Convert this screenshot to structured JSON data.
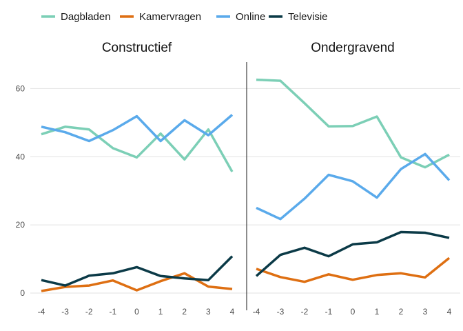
{
  "chart_data": {
    "type": "line",
    "x": [
      -4,
      -3,
      -2,
      -1,
      0,
      1,
      2,
      3,
      4
    ],
    "y_ticks": [
      0,
      20,
      40,
      60
    ],
    "ylim": [
      0,
      70
    ],
    "legend_position": "top",
    "grid": "horizontal",
    "series_colors": {
      "Dagbladen": "#7ccfb6",
      "Kamervragen": "#de6f12",
      "Online": "#5aaaeb",
      "Televisie": "#0b3a47"
    },
    "legend": [
      "Dagbladen",
      "Kamervragen",
      "Online",
      "Televisie"
    ],
    "panels": [
      {
        "title": "Constructief",
        "series": [
          {
            "name": "Dagbladen",
            "values": [
              46.6,
              48.8,
              48.0,
              42.5,
              39.8,
              46.8,
              39.2,
              48.0,
              35.6
            ]
          },
          {
            "name": "Kamervragen",
            "values": [
              0.6,
              1.8,
              2.2,
              3.7,
              0.8,
              3.5,
              5.8,
              1.9,
              1.2
            ]
          },
          {
            "name": "Online",
            "values": [
              48.8,
              47.2,
              44.6,
              47.8,
              51.9,
              44.6,
              50.7,
              46.3,
              52.3
            ]
          },
          {
            "name": "Televisie",
            "values": [
              3.8,
              2.2,
              5.1,
              5.8,
              7.6,
              5.0,
              4.3,
              3.8,
              10.8
            ]
          }
        ]
      },
      {
        "title": "Ondergravend",
        "series": [
          {
            "name": "Dagbladen",
            "values": [
              62.6,
              62.3,
              55.7,
              48.9,
              49.0,
              51.8,
              39.8,
              36.9,
              40.6
            ]
          },
          {
            "name": "Kamervragen",
            "values": [
              7.1,
              4.7,
              3.3,
              5.5,
              3.9,
              5.3,
              5.8,
              4.6,
              10.3
            ]
          },
          {
            "name": "Online",
            "values": [
              25.0,
              21.7,
              27.7,
              34.7,
              32.8,
              28.0,
              36.4,
              40.8,
              33.1
            ]
          },
          {
            "name": "Televisie",
            "values": [
              5.0,
              11.2,
              13.3,
              10.8,
              14.3,
              14.9,
              17.9,
              17.7,
              16.2
            ]
          }
        ]
      }
    ]
  }
}
